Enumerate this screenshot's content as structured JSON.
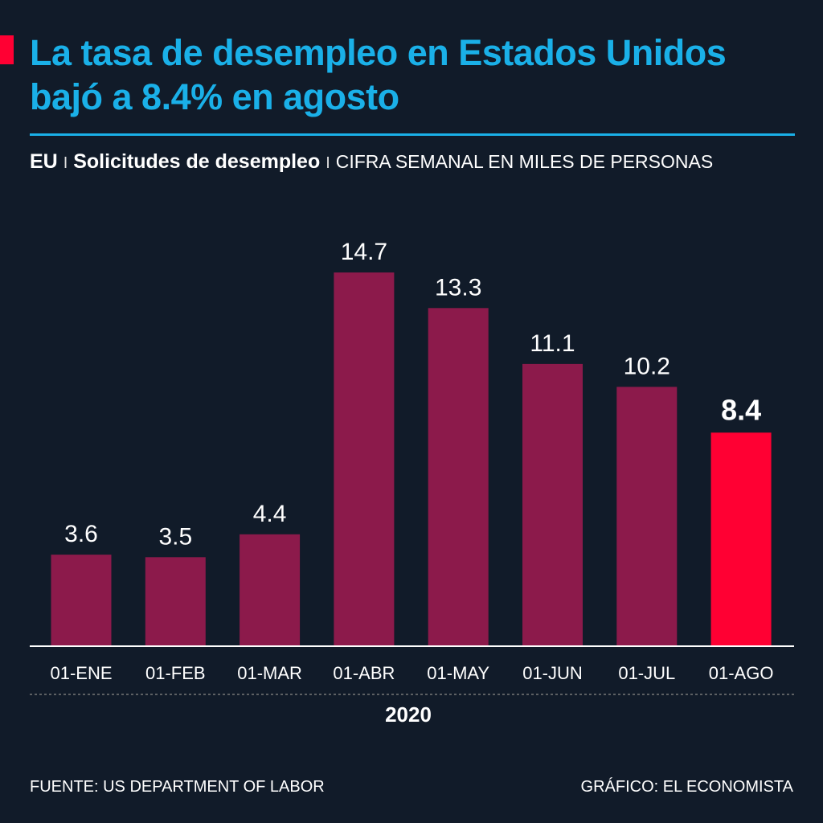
{
  "title": "La tasa de desempleo en Estados Unidos bajó a 8.4% en agosto",
  "subtitle": {
    "region": "EU",
    "separator": "I",
    "topic": "Solicitudes de desempleo",
    "unit": "CIFRA SEMANAL EN MILES DE PERSONAS"
  },
  "chart_data": {
    "type": "bar",
    "categories": [
      "01-ENE",
      "01-FEB",
      "01-MAR",
      "01-ABR",
      "01-MAY",
      "01-JUN",
      "01-JUL",
      "01-AGO"
    ],
    "values": [
      3.6,
      3.5,
      4.4,
      14.7,
      13.3,
      11.1,
      10.2,
      8.4
    ],
    "value_labels": [
      "3.6",
      "3.5",
      "4.4",
      "14.7",
      "13.3",
      "11.1",
      "10.2",
      "8.4"
    ],
    "xlabel": "2020",
    "ylim": [
      0,
      14.7
    ],
    "grid": false,
    "highlight_index": 7,
    "colors": {
      "bar": "#8c1a4b",
      "highlight": "#ff0033",
      "title": "#1ab0e8",
      "background": "#111b29"
    }
  },
  "footer": {
    "source": "FUENTE: US DEPARTMENT OF LABOR",
    "credit": "GRÁFICO: EL ECONOMISTA"
  }
}
